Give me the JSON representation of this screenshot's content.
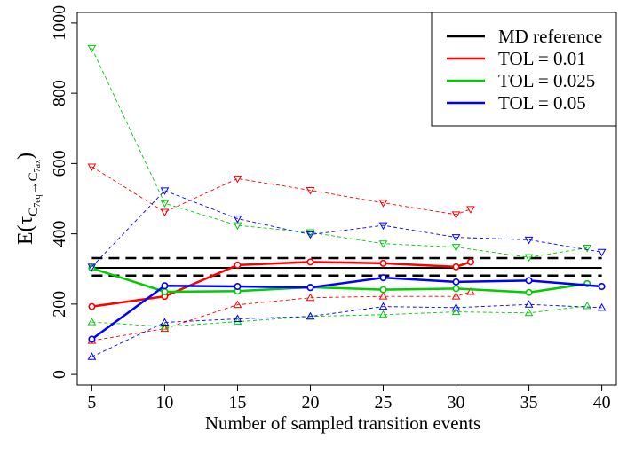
{
  "chart_data": {
    "type": "line",
    "title": "",
    "xlabel": "Number of sampled transition events",
    "ylabel_main": "E",
    "ylabel_tau": "τ",
    "ylabel_sub_from": "C",
    "ylabel_sub_from_idx": "7eq",
    "ylabel_arrow": "→",
    "ylabel_sub_to": "C",
    "ylabel_sub_to_idx": "7ax",
    "xlim": [
      4,
      41
    ],
    "ylim": [
      -30,
      1030
    ],
    "xticks": [
      "5",
      "10",
      "15",
      "20",
      "25",
      "30",
      "35",
      "40"
    ],
    "yticks": [
      "0",
      "200",
      "400",
      "600",
      "800",
      "1000"
    ],
    "legend_position": "top-right",
    "reference": {
      "name": "MD reference",
      "color": "#000000",
      "x_range": [
        5,
        40
      ],
      "mean": 303,
      "upper": 331,
      "lower": 281
    },
    "series": [
      {
        "name": "TOL = 0.01",
        "color": "#ff0000",
        "x": [
          5,
          10,
          15,
          20,
          25,
          30,
          31
        ],
        "mean_x": [
          5,
          10,
          15,
          20,
          25,
          30,
          31
        ],
        "mean": [
          193,
          222,
          311,
          320,
          316,
          306,
          320
        ],
        "upper": [
          591,
          462,
          557,
          524,
          488,
          455,
          470
        ],
        "lower": [
          96,
          130,
          198,
          218,
          222,
          222,
          235
        ]
      },
      {
        "name": "TOL = 0.025",
        "color": "#00cc00",
        "x": [
          5,
          10,
          15,
          20,
          25,
          30,
          35,
          39
        ],
        "mean_x": [
          5,
          10,
          15,
          20,
          25,
          30,
          35,
          39
        ],
        "mean": [
          302,
          235,
          237,
          248,
          241,
          244,
          233,
          258
        ],
        "upper": [
          928,
          487,
          424,
          404,
          372,
          362,
          333,
          360
        ],
        "lower": [
          149,
          136,
          150,
          165,
          170,
          178,
          175,
          195
        ]
      },
      {
        "name": "TOL = 0.05",
        "color": "#0000ff",
        "x": [
          5,
          10,
          15,
          20,
          25,
          30,
          35,
          40
        ],
        "mean_x": [
          5,
          10,
          15,
          20,
          25,
          30,
          35,
          40
        ],
        "mean": [
          100,
          252,
          250,
          247,
          275,
          263,
          267,
          250
        ],
        "upper": [
          306,
          523,
          443,
          398,
          424,
          390,
          383,
          348
        ],
        "lower": [
          50,
          148,
          158,
          165,
          193,
          190,
          199,
          190
        ]
      }
    ]
  }
}
